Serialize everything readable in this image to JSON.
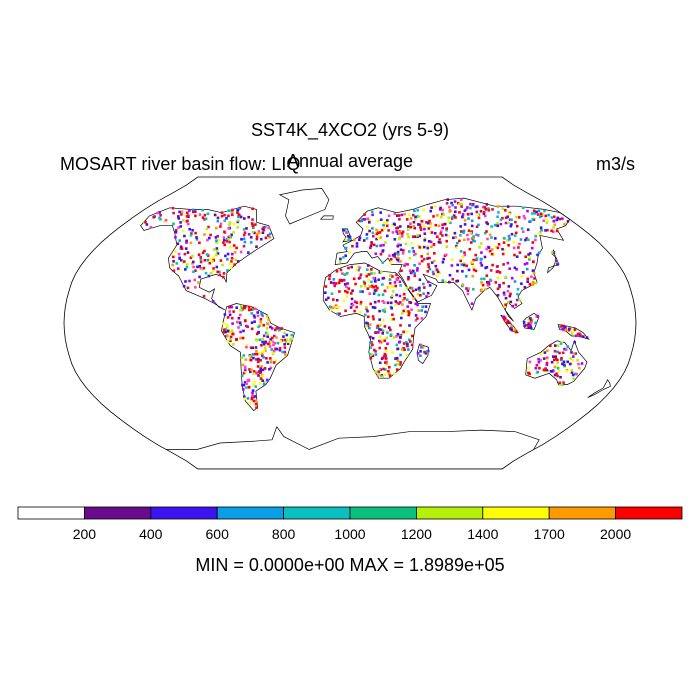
{
  "figure": {
    "title": "SST4K_4XCO2 (yrs 5-9)",
    "left_label": "MOSART river basin flow: LIQ",
    "center_label": "Annual average",
    "units": "m3/s",
    "minmax": "MIN = 0.0000e+00 MAX = 1.8989e+05"
  },
  "colorbar": {
    "colors": [
      "#ffffff",
      "#6a0a8c",
      "#3b14f0",
      "#0a9ee6",
      "#0ac0c0",
      "#0ac080",
      "#b4f00a",
      "#ffff00",
      "#ff9a00",
      "#ff0000"
    ],
    "tick_labels": [
      "200",
      "400",
      "600",
      "800",
      "1000",
      "1200",
      "1400",
      "1700",
      "2000"
    ]
  },
  "map": {
    "projection": "Robinson",
    "background": "#ffffff",
    "coastline_color": "#000000"
  }
}
